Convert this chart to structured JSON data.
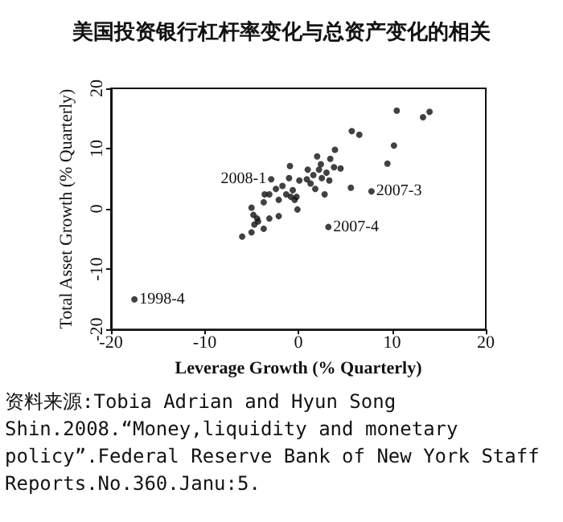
{
  "chart_data": {
    "type": "scatter",
    "title": "美国投资银行杠杆率变化与总资产变化的相关",
    "xlabel": "Leverage Growth (% Quarterly)",
    "ylabel": "Total Asset Growth (% Quarterly)",
    "x": [
      -17.5,
      -6.0,
      -5.0,
      -4.7,
      -4.4,
      -4.8,
      -4.3,
      -3.7,
      -5.0,
      -3.1,
      -2.1,
      -3.7,
      -3.6,
      -3.1,
      -2.9,
      -2.4,
      -2.1,
      -1.7,
      -1.3,
      -1.0,
      -0.9,
      -0.8,
      -0.6,
      -0.4,
      -0.1,
      -0.2,
      0.1,
      0.9,
      1.0,
      1.3,
      1.6,
      1.8,
      2.0,
      2.2,
      2.4,
      2.5,
      2.8,
      3.0,
      3.3,
      3.4,
      3.8,
      3.9,
      4.5,
      3.2,
      5.6,
      5.7,
      6.5,
      7.8,
      9.5,
      10.2,
      10.5,
      13.3,
      14.0
    ],
    "values": [
      -15.0,
      -4.6,
      -3.9,
      -2.6,
      -1.6,
      -1.0,
      -2.1,
      -3.3,
      0.2,
      -1.6,
      -1.2,
      1.1,
      2.4,
      2.4,
      4.9,
      3.3,
      1.5,
      3.8,
      2.4,
      5.1,
      7.1,
      2.0,
      3.1,
      1.5,
      -0.1,
      2.0,
      4.7,
      4.9,
      6.5,
      4.2,
      5.6,
      3.3,
      8.7,
      6.5,
      7.4,
      5.1,
      2.4,
      6.0,
      4.7,
      8.3,
      6.9,
      9.8,
      6.7,
      -3.0,
      3.5,
      12.9,
      12.3,
      2.9,
      7.5,
      10.5,
      16.3,
      15.2,
      16.1
    ],
    "color": "#111111",
    "marker": "circle",
    "xlim": [
      -20,
      20
    ],
    "ylim": [
      -20,
      20
    ],
    "xticks": [
      -20,
      -10,
      0,
      10,
      20
    ],
    "yticks": [
      -20,
      -10,
      0,
      10,
      20
    ],
    "annotations": [
      {
        "text": "1998-4",
        "x": -17.5,
        "y": -15.0
      },
      {
        "text": "2008-1",
        "x": -2.9,
        "y": 4.9
      },
      {
        "text": "2007-3",
        "x": 7.8,
        "y": 2.9
      },
      {
        "text": "2007-4",
        "x": 3.2,
        "y": -3.0
      },
      "资料来源:Tobia Adrian and Hyun Song Shin.2008.“Money,liquidity and monetary policy”.Federal Reserve Bank of New York Staff Reports.No.360.Janu:5."
    ]
  }
}
